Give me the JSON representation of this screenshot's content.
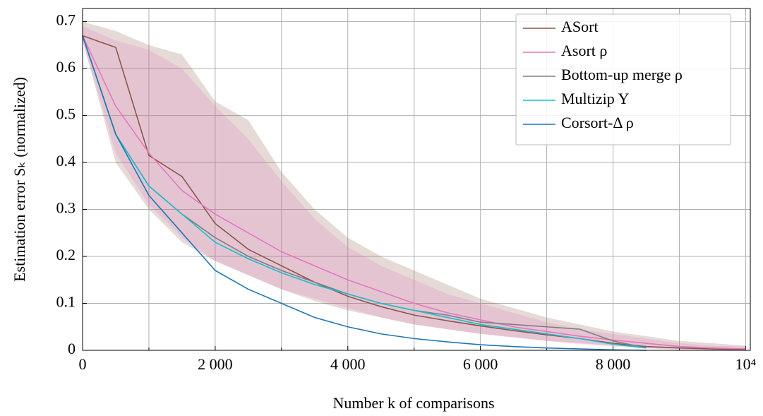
{
  "chart_data": {
    "type": "line",
    "xlabel": "Number k of comparisons",
    "ylabel": "Estimation error Sₖ (normalized)",
    "x": [
      0,
      500,
      1000,
      1500,
      2000,
      2500,
      3000,
      3500,
      4000,
      4500,
      5000,
      5500,
      6000,
      6500,
      7000,
      7500,
      8000,
      8500,
      9000,
      9500,
      10000
    ],
    "xlim": [
      0,
      10070
    ],
    "ylim": [
      0,
      0.728
    ],
    "xticks": [
      0,
      {
        "value": 2000,
        "label": "2 000"
      },
      {
        "value": 4000,
        "label": "4 000"
      },
      {
        "value": 6000,
        "label": "6 000"
      },
      {
        "value": 8000,
        "label": "8 000"
      },
      {
        "value": 10000,
        "label": "10⁴"
      }
    ],
    "xminor": [
      1000,
      3000,
      5000,
      7000,
      9000
    ],
    "yticks": [
      0,
      0.1,
      0.2,
      0.3,
      0.4,
      0.5,
      0.6,
      0.7
    ],
    "grid": true,
    "legend": "upper right",
    "series": [
      {
        "name": "ASort",
        "color": "#8c564b",
        "values": [
          0.67,
          0.645,
          0.415,
          0.37,
          0.27,
          0.215,
          0.18,
          0.145,
          0.115,
          0.093,
          0.075,
          0.063,
          0.052,
          0.042,
          0.033,
          0.025,
          0.015,
          0.008,
          0.005,
          0.003,
          0.002
        ],
        "upper": [
          0.7,
          0.68,
          0.65,
          0.63,
          0.53,
          0.49,
          0.38,
          0.3,
          0.24,
          0.2,
          0.17,
          0.14,
          0.11,
          0.09,
          0.07,
          0.055,
          0.04,
          0.03,
          0.02,
          0.015,
          0.01
        ],
        "lower": [
          0.66,
          0.4,
          0.3,
          0.23,
          0.19,
          0.16,
          0.13,
          0.105,
          0.085,
          0.07,
          0.055,
          0.045,
          0.035,
          0.028,
          0.02,
          0.015,
          0.01,
          0.005,
          0.002,
          0.001,
          0
        ]
      },
      {
        "name": "Asort ρ",
        "color": "#e377c2",
        "values": [
          0.67,
          0.52,
          0.42,
          0.34,
          0.29,
          0.25,
          0.21,
          0.18,
          0.15,
          0.125,
          0.1,
          0.08,
          0.065,
          0.05,
          0.04,
          0.03,
          0.022,
          0.015,
          0.008,
          0.005,
          0.003
        ],
        "upper": [
          0.69,
          0.66,
          0.64,
          0.6,
          0.52,
          0.45,
          0.36,
          0.28,
          0.22,
          0.18,
          0.15,
          0.12,
          0.1,
          0.08,
          0.06,
          0.045,
          0.035,
          0.025,
          0.015,
          0.01,
          0.008
        ],
        "lower": [
          0.66,
          0.42,
          0.31,
          0.24,
          0.19,
          0.16,
          0.13,
          0.11,
          0.09,
          0.07,
          0.055,
          0.045,
          0.035,
          0.027,
          0.02,
          0.013,
          0.008,
          0.004,
          0.002,
          0.001,
          0
        ]
      },
      {
        "name": "Bottom-up merge ρ",
        "color": "#7f7f7f",
        "values": [
          0.67,
          0.46,
          0.35,
          0.29,
          0.24,
          0.2,
          0.17,
          0.145,
          0.12,
          0.1,
          0.085,
          0.075,
          0.06,
          0.055,
          0.05,
          0.045,
          0.02,
          0.005,
          null,
          null,
          null
        ]
      },
      {
        "name": "Multizip Y",
        "color": "#17becf",
        "values": [
          0.67,
          0.46,
          0.35,
          0.29,
          0.23,
          0.195,
          0.165,
          0.14,
          0.12,
          0.1,
          0.085,
          0.07,
          0.055,
          0.045,
          0.035,
          0.025,
          0.013,
          0.005,
          null,
          null,
          null
        ]
      },
      {
        "name": "Corsort-Δ ρ",
        "color": "#1f77b4",
        "values": [
          0.67,
          0.46,
          0.33,
          0.25,
          0.17,
          0.13,
          0.1,
          0.07,
          0.05,
          0.035,
          0.025,
          0.018,
          0.012,
          0.008,
          0.005,
          0.003,
          0.001,
          0,
          null,
          null,
          null
        ]
      }
    ]
  }
}
